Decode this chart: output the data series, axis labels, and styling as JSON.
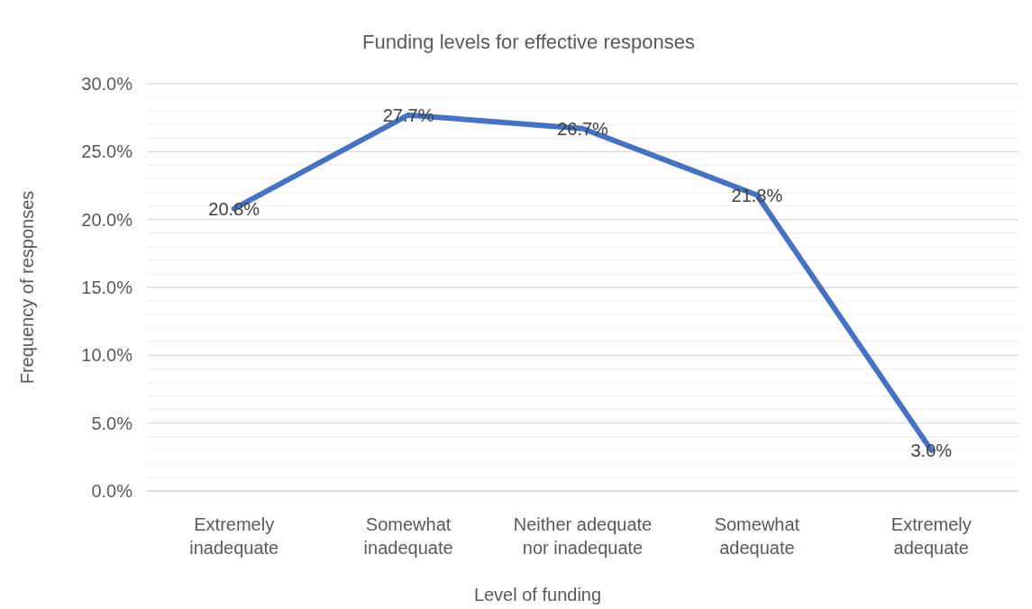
{
  "chart_data": {
    "type": "line",
    "title": "Funding levels for effective responses",
    "xlabel": "Level of funding",
    "ylabel": "Frequency of responses",
    "categories": [
      "Extremely inadequate",
      "Somewhat inadequate",
      "Neither adequate nor inadequate",
      "Somewhat adequate",
      "Extremely adequate"
    ],
    "series": [
      {
        "color": "#4472c4",
        "values": [
          20.8,
          27.7,
          26.7,
          21.8,
          3.0
        ],
        "value_labels": [
          "20.8%",
          "27.7%",
          "26.7%",
          "21.8%",
          "3.0%"
        ]
      }
    ],
    "ylim": [
      0,
      30
    ],
    "yticks": [
      {
        "value": 0,
        "label": "0.0%"
      },
      {
        "value": 1,
        "label": null
      },
      {
        "value": 2,
        "label": null
      },
      {
        "value": 3,
        "label": null
      },
      {
        "value": 4,
        "label": null
      },
      {
        "value": 5,
        "label": "5.0%"
      },
      {
        "value": 6,
        "label": null
      },
      {
        "value": 7,
        "label": null
      },
      {
        "value": 8,
        "label": null
      },
      {
        "value": 9,
        "label": null
      },
      {
        "value": 10,
        "label": "10.0%"
      },
      {
        "value": 11,
        "label": null
      },
      {
        "value": 12,
        "label": null
      },
      {
        "value": 13,
        "label": null
      },
      {
        "value": 14,
        "label": null
      },
      {
        "value": 15,
        "label": "15.0%"
      },
      {
        "value": 16,
        "label": null
      },
      {
        "value": 17,
        "label": null
      },
      {
        "value": 18,
        "label": null
      },
      {
        "value": 19,
        "label": null
      },
      {
        "value": 20,
        "label": "20.0%"
      },
      {
        "value": 21,
        "label": null
      },
      {
        "value": 22,
        "label": null
      },
      {
        "value": 23,
        "label": null
      },
      {
        "value": 24,
        "label": null
      },
      {
        "value": 25,
        "label": "25.0%"
      },
      {
        "value": 26,
        "label": null
      },
      {
        "value": 27,
        "label": null
      },
      {
        "value": 28,
        "label": null
      },
      {
        "value": 29,
        "label": null
      },
      {
        "value": 30,
        "label": "30.0%"
      }
    ],
    "grid": true,
    "marker": "none",
    "line_style": "solid"
  }
}
